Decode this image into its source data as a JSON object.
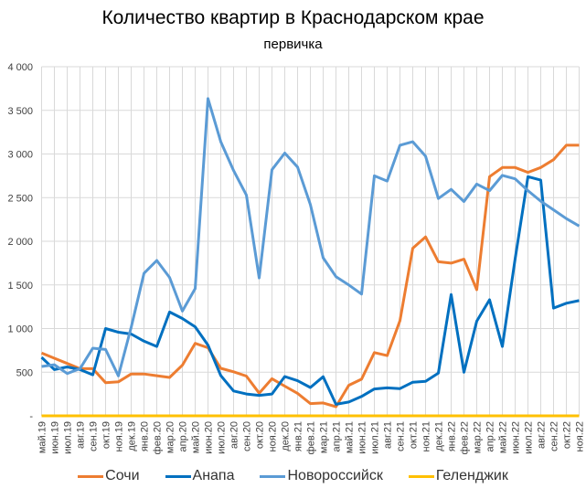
{
  "title": "Количество квартир в Краснодарском крае",
  "subtitle": "первичка",
  "chart_data": {
    "type": "line",
    "title": "Количество квартир в Краснодарском крае",
    "subtitle": "первичка",
    "xlabel": "",
    "ylabel": "",
    "ylim": [
      0,
      4000
    ],
    "yticks": [
      0,
      500,
      1000,
      1500,
      2000,
      2500,
      3000,
      3500,
      4000
    ],
    "ytick_labels": [
      "-",
      "500",
      "1 000",
      "1 500",
      "2 000",
      "2 500",
      "3 000",
      "3 500",
      "4 000"
    ],
    "grid": true,
    "legend_position": "bottom",
    "categories": [
      "май.19",
      "июн.19",
      "июл.19",
      "авг.19",
      "сен.19",
      "окт.19",
      "ноя.19",
      "дек.19",
      "янв.20",
      "фев.20",
      "мар.20",
      "апр.20",
      "май.20",
      "июн.20",
      "июл.20",
      "авг.20",
      "сен.20",
      "окт.20",
      "ноя.20",
      "дек.20",
      "янв.21",
      "фев.21",
      "мар.21",
      "апр.21",
      "май.21",
      "июн.21",
      "июл.21",
      "авг.21",
      "сен.21",
      "окт.21",
      "ноя.21",
      "дек.21",
      "янв.22",
      "фев.22",
      "мар.22",
      "апр.22",
      "май.22",
      "июн.22",
      "июл.22",
      "авг.22",
      "сен.22",
      "окт.22",
      "ноя.22"
    ],
    "series": [
      {
        "name": "Сочи",
        "color": "#ED7D31",
        "values": [
          720,
          660,
          600,
          540,
          540,
          380,
          390,
          480,
          480,
          460,
          440,
          580,
          830,
          780,
          545,
          505,
          455,
          260,
          425,
          340,
          258,
          140,
          148,
          105,
          350,
          420,
          725,
          690,
          1090,
          1920,
          2050,
          1765,
          1750,
          1795,
          1445,
          2740,
          2845,
          2845,
          2790,
          2845,
          2935,
          3100,
          3100
        ]
      },
      {
        "name": "Анапа",
        "color": "#0070C0",
        "values": [
          670,
          530,
          560,
          530,
          470,
          1000,
          958,
          937,
          855,
          795,
          1190,
          1115,
          1020,
          810,
          462,
          285,
          250,
          235,
          250,
          450,
          402,
          325,
          448,
          132,
          158,
          222,
          308,
          320,
          312,
          385,
          395,
          490,
          1390,
          500,
          1085,
          1330,
          795,
          1800,
          2740,
          2700,
          1235,
          1290,
          1320
        ]
      },
      {
        "name": "Новороссийск",
        "color": "#5B9BD5",
        "values": [
          565,
          585,
          485,
          540,
          775,
          760,
          458,
          1015,
          1632,
          1780,
          1585,
          1200,
          1458,
          3635,
          3140,
          2810,
          2530,
          1580,
          2820,
          3010,
          2850,
          2420,
          1810,
          1595,
          1500,
          1395,
          2750,
          2690,
          3100,
          3140,
          2975,
          2490,
          2595,
          2455,
          2655,
          2580,
          2755,
          2715,
          2580,
          2460,
          2360,
          2260,
          2175
        ]
      },
      {
        "name": "Геленджик",
        "color": "#FFC000",
        "values": [
          0,
          0,
          0,
          0,
          0,
          0,
          0,
          0,
          0,
          0,
          0,
          0,
          0,
          0,
          0,
          0,
          0,
          0,
          0,
          0,
          0,
          0,
          0,
          0,
          0,
          0,
          0,
          0,
          0,
          0,
          0,
          0,
          0,
          0,
          0,
          0,
          0,
          0,
          0,
          0,
          0,
          0,
          0
        ]
      }
    ]
  },
  "legend": {
    "items": [
      {
        "label": "Сочи",
        "color": "#ED7D31"
      },
      {
        "label": "Анапа",
        "color": "#0070C0"
      },
      {
        "label": "Новороссийск",
        "color": "#5B9BD5"
      },
      {
        "label": "Геленджик",
        "color": "#FFC000"
      }
    ]
  }
}
